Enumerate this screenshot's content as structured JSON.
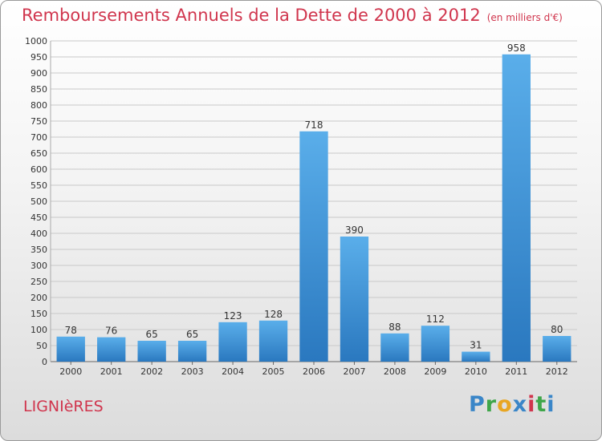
{
  "header": {
    "title": "Remboursements Annuels de la Dette de 2000 à 2012",
    "subtitle": "(en milliers d'€)"
  },
  "footer": {
    "commune": "LIGNIèRES",
    "logo": [
      "P",
      "r",
      "o",
      "x",
      "i",
      "t",
      "i"
    ],
    "logo_colors": [
      "#3a86c8",
      "#3fa64a",
      "#e8a623",
      "#3a86c8",
      "#d0354d",
      "#3fa64a",
      "#3a86c8"
    ]
  },
  "chart_data": {
    "type": "bar",
    "title": "Remboursements Annuels de la Dette de 2000 à 2012",
    "subtitle": "(en milliers d'€)",
    "categories": [
      "2000",
      "2001",
      "2002",
      "2003",
      "2004",
      "2005",
      "2006",
      "2007",
      "2008",
      "2009",
      "2010",
      "2011",
      "2012"
    ],
    "values": [
      78,
      76,
      65,
      65,
      123,
      128,
      718,
      390,
      88,
      112,
      31,
      958,
      80
    ],
    "data_labels": [
      "78",
      "76",
      "65",
      "65",
      "123",
      "128",
      "718",
      "390",
      "88",
      "112",
      "31",
      "958",
      "80"
    ],
    "ylim": [
      0,
      1000
    ],
    "yticks": [
      0,
      50,
      100,
      150,
      200,
      250,
      300,
      350,
      400,
      450,
      500,
      550,
      600,
      650,
      700,
      750,
      800,
      850,
      900,
      950,
      1000
    ],
    "ytick_labels": [
      "0",
      "50",
      "100",
      "150",
      "200",
      "250",
      "300",
      "350",
      "400",
      "450",
      "500",
      "550",
      "600",
      "650",
      "700",
      "750",
      "800",
      "850",
      "900",
      "950",
      "1000"
    ],
    "grid": true,
    "bar_color": "#3a8fd6",
    "grid_color": "#c9c9c9"
  }
}
